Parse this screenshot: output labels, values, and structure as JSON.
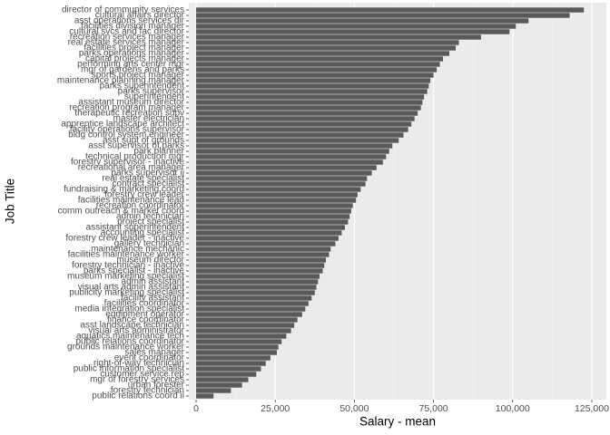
{
  "chart_data": {
    "type": "barh",
    "xlabel": "Salary - mean",
    "ylabel": "Job Title",
    "color": "#595959",
    "grid": true,
    "xlim": [
      -2300,
      129600
    ],
    "xticks": [
      0,
      {
        "value": 25000,
        "label": "25,000"
      },
      {
        "value": 50000,
        "label": "50,000"
      },
      {
        "value": 75000,
        "label": "75,000"
      },
      {
        "value": 100000,
        "label": "100,000"
      },
      {
        "value": 125000,
        "label": "125,000"
      }
    ],
    "categories": [
      "director of community services",
      "cultural affairs director",
      "asst operations services dir",
      "facilities division manager",
      "cultural svcs and fac director",
      "recreation services manager",
      "real estate services manager",
      "facilities project manager",
      "parks operations manager",
      "capital projects manager",
      "performing arts center mgr",
      "mgr of gardens and parks",
      "sports project manager",
      "maintenance planning manager",
      "parks superintendent",
      "parks supervisor",
      "superintendent",
      "assistant museum director",
      "recreation program manager",
      "therapeutic recreation supv",
      "master electrician",
      "apprentice landscape architect",
      "facility operations supervisor",
      "bldg control system engineer",
      "asst supt of grounds",
      "asst supervisor of parks",
      "park planner",
      "technical production mgr",
      "forestry supervisor - inactive",
      "recreational area manager",
      "parks supervisor ii",
      "real estate specialist",
      "contract specialist",
      "fundraising & marketing coord",
      "forestry crew leader",
      "facilities maintenance lead",
      "recreation coordinator",
      "comm outreach & market coord",
      "admin technician",
      "project specialist",
      "assistant superintendent",
      "accounting specialist",
      "forestry crew leader - inactive",
      "gallery technician",
      "maintenance mechanic",
      "facilities maintenance worker",
      "museum director",
      "forestry technician - inactive",
      "parks specialist - inactive",
      "museum marketing specialist",
      "admin assistant",
      "visual arts admin assistant",
      "publicity marketing specialist",
      "facility assistant",
      "facilities coordinator",
      "media integration specialist",
      "equipment operator",
      "finance coordinator",
      "asst landscape technician",
      "visual arts administrator",
      "aquatics maintenance tech",
      "public relations coordinator",
      "grounds maintenance worker",
      "sales manager",
      "event coordinator",
      "right-of-way technician",
      "public information specialist",
      "customer service rep",
      "mgr of forestry services",
      "urban forester",
      "forestry technician",
      "public relations coord ii"
    ],
    "values": [
      122500,
      118000,
      105000,
      101000,
      99000,
      90000,
      83000,
      82000,
      80000,
      78000,
      77000,
      76000,
      75000,
      74000,
      73500,
      73000,
      72000,
      71500,
      71000,
      70000,
      69000,
      68000,
      67000,
      65500,
      64000,
      62000,
      61000,
      60000,
      59000,
      57000,
      55500,
      54000,
      53500,
      52000,
      51000,
      50500,
      49500,
      49000,
      48500,
      48000,
      47000,
      46000,
      45000,
      44000,
      42500,
      42000,
      41000,
      40500,
      40000,
      39000,
      38500,
      38000,
      37500,
      36500,
      35500,
      34500,
      33500,
      32000,
      31000,
      30000,
      28500,
      27000,
      26000,
      25500,
      23500,
      22000,
      20500,
      19000,
      16500,
      14500,
      11000,
      5500
    ]
  }
}
